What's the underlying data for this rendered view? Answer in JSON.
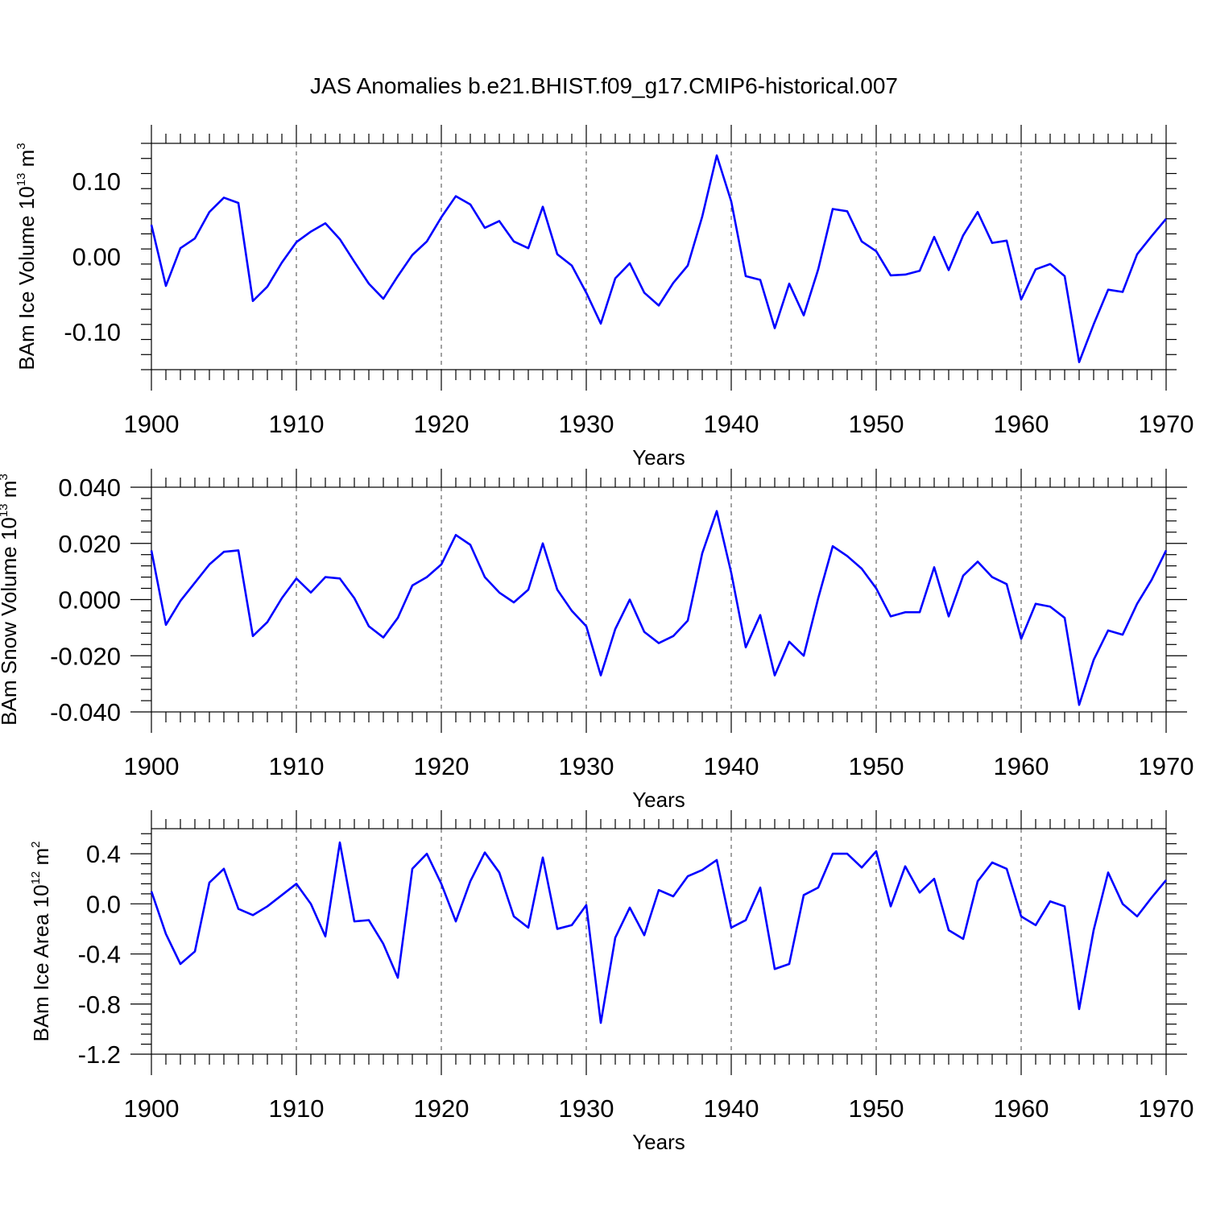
{
  "chart_data": {
    "type": "line",
    "title": "JAS Anomalies b.e21.BHIST.f09_g17.CMIP6-historical.007",
    "line_color": "#0000ff",
    "x": [
      1900,
      1901,
      1902,
      1903,
      1904,
      1905,
      1906,
      1907,
      1908,
      1909,
      1910,
      1911,
      1912,
      1913,
      1914,
      1915,
      1916,
      1917,
      1918,
      1919,
      1920,
      1921,
      1922,
      1923,
      1924,
      1925,
      1926,
      1927,
      1928,
      1929,
      1930,
      1931,
      1932,
      1933,
      1934,
      1935,
      1936,
      1937,
      1938,
      1939,
      1940,
      1941,
      1942,
      1943,
      1944,
      1945,
      1946,
      1947,
      1948,
      1949,
      1950,
      1951,
      1952,
      1953,
      1954,
      1955,
      1956,
      1957,
      1958,
      1959,
      1960,
      1961,
      1962,
      1963,
      1964,
      1965,
      1966,
      1967,
      1968,
      1969,
      1970
    ],
    "xlim": [
      1900,
      1970
    ],
    "x_ticks": [
      1900,
      1910,
      1920,
      1930,
      1940,
      1950,
      1960,
      1970
    ],
    "x_tick_labels": [
      "1900",
      "1910",
      "1920",
      "1930",
      "1940",
      "1950",
      "1960",
      "1970"
    ],
    "panels": [
      {
        "ylabel": "BAm Ice Volume 10",
        "ylabel_exp": "13",
        "ylabel_unit": " m",
        "ylabel_unit_exp": "3",
        "xlabel": "Years",
        "ylim": [
          -0.15,
          0.15
        ],
        "y_ticks": [
          -0.1,
          0.0,
          0.1
        ],
        "y_tick_labels": [
          "-0.10",
          "0.00",
          "0.10"
        ],
        "y_minor_step": 0.02,
        "values": [
          0.042,
          -0.039,
          0.011,
          0.024,
          0.059,
          0.078,
          0.071,
          -0.059,
          -0.04,
          -0.008,
          0.019,
          0.033,
          0.044,
          0.023,
          -0.007,
          -0.036,
          -0.056,
          -0.026,
          0.002,
          0.02,
          0.052,
          0.08,
          0.069,
          0.038,
          0.047,
          0.02,
          0.011,
          0.066,
          0.003,
          -0.012,
          -0.048,
          -0.089,
          -0.029,
          -0.009,
          -0.048,
          -0.065,
          -0.035,
          -0.012,
          0.053,
          0.134,
          0.073,
          -0.026,
          -0.031,
          -0.095,
          -0.036,
          -0.078,
          -0.017,
          0.063,
          0.06,
          0.02,
          0.007,
          -0.025,
          -0.024,
          -0.019,
          0.026,
          -0.018,
          0.028,
          0.059,
          0.018,
          0.021,
          -0.057,
          -0.017,
          -0.01,
          -0.026,
          -0.14,
          -0.09,
          -0.044,
          -0.047,
          0.003,
          0.027,
          0.05
        ]
      },
      {
        "ylabel": "BAm Snow Volume 10",
        "ylabel_exp": "13",
        "ylabel_unit": " m",
        "ylabel_unit_exp": "3",
        "xlabel": "Years",
        "ylim": [
          -0.04,
          0.04
        ],
        "y_ticks": [
          -0.04,
          -0.02,
          0.0,
          0.02,
          0.04
        ],
        "y_tick_labels": [
          "-0.040",
          "-0.020",
          "0.000",
          "0.020",
          "0.040"
        ],
        "y_minor_step": 0.004,
        "values": [
          0.0175,
          -0.009,
          -0.0005,
          0.006,
          0.0125,
          0.017,
          0.0175,
          -0.013,
          -0.008,
          0.0005,
          0.0075,
          0.0025,
          0.008,
          0.0075,
          0.0005,
          -0.0095,
          -0.0135,
          -0.0065,
          0.005,
          0.008,
          0.0125,
          0.023,
          0.0195,
          0.008,
          0.0025,
          -0.001,
          0.0035,
          0.02,
          0.0035,
          -0.004,
          -0.0095,
          -0.027,
          -0.0105,
          0.0,
          -0.0115,
          -0.0155,
          -0.013,
          -0.0075,
          0.0165,
          0.0315,
          0.0095,
          -0.017,
          -0.0055,
          -0.027,
          -0.015,
          -0.02,
          0.0005,
          0.019,
          0.0155,
          0.011,
          0.004,
          -0.006,
          -0.0045,
          -0.0045,
          0.0115,
          -0.006,
          0.0085,
          0.0135,
          0.008,
          0.0055,
          -0.014,
          -0.0015,
          -0.0025,
          -0.0065,
          -0.0375,
          -0.0215,
          -0.011,
          -0.0125,
          -0.0015,
          0.007,
          0.0175
        ]
      },
      {
        "ylabel": "BAm Ice Area 10",
        "ylabel_exp": "12",
        "ylabel_unit": " m",
        "ylabel_unit_exp": "2",
        "xlabel": "Years",
        "ylim": [
          -1.2,
          0.6
        ],
        "y_ticks": [
          -1.2,
          -0.8,
          -0.4,
          0.0,
          0.4
        ],
        "y_tick_labels": [
          "-1.2",
          "-0.8",
          "-0.4",
          "0.0",
          "0.4"
        ],
        "y_minor_step": 0.08,
        "values": [
          0.1,
          -0.24,
          -0.48,
          -0.38,
          0.17,
          0.28,
          -0.04,
          -0.09,
          -0.02,
          0.07,
          0.16,
          0.0,
          -0.26,
          0.49,
          -0.14,
          -0.13,
          -0.32,
          -0.59,
          0.28,
          0.4,
          0.16,
          -0.14,
          0.18,
          0.41,
          0.25,
          -0.1,
          -0.19,
          0.37,
          -0.2,
          -0.17,
          -0.01,
          -0.95,
          -0.27,
          -0.03,
          -0.25,
          0.11,
          0.06,
          0.22,
          0.27,
          0.35,
          -0.19,
          -0.13,
          0.13,
          -0.52,
          -0.48,
          0.07,
          0.13,
          0.4,
          0.4,
          0.29,
          0.42,
          -0.02,
          0.3,
          0.09,
          0.2,
          -0.21,
          -0.28,
          0.18,
          0.33,
          0.28,
          -0.1,
          -0.17,
          0.02,
          -0.02,
          -0.84,
          -0.21,
          0.25,
          0.0,
          -0.1,
          0.05,
          0.19
        ]
      }
    ]
  }
}
